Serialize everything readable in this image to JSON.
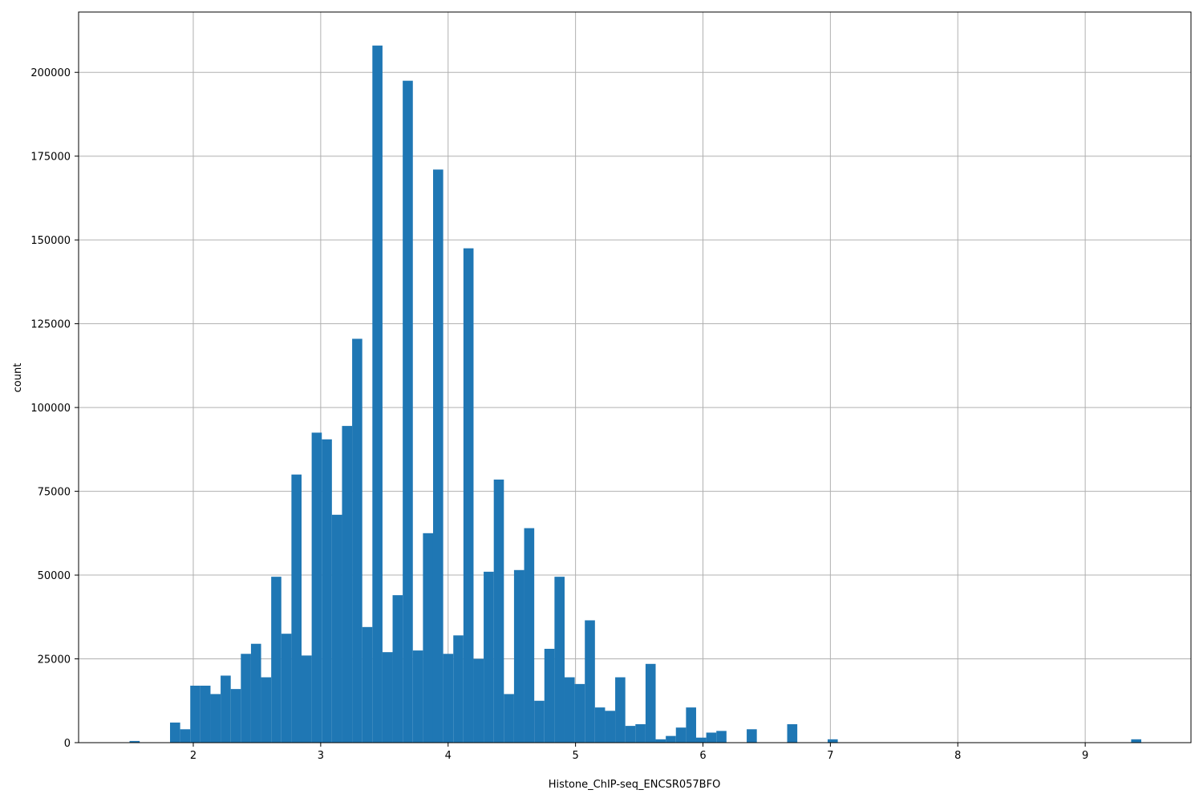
{
  "chart_data": {
    "type": "bar",
    "title": "",
    "xlabel": "Histone_ChIP-seq_ENCSR057BFO",
    "ylabel": "count",
    "xlim": [
      1.1,
      9.83
    ],
    "ylim": [
      0,
      218000
    ],
    "grid": true,
    "bar_color": "#1f77b4",
    "grid_color": "#b0b0b0",
    "bin_start": 1.5,
    "bin_width": 0.0794,
    "values": [
      500,
      0,
      0,
      0,
      6000,
      4000,
      17000,
      17000,
      14500,
      20000,
      16000,
      26500,
      29500,
      19500,
      49500,
      32500,
      80000,
      26000,
      92500,
      90500,
      68000,
      94500,
      120500,
      34500,
      208000,
      27000,
      44000,
      197500,
      27500,
      62500,
      171000,
      26500,
      32000,
      147500,
      25000,
      51000,
      78500,
      14500,
      51500,
      64000,
      12500,
      28000,
      49500,
      19500,
      17500,
      36500,
      10500,
      9500,
      19500,
      5000,
      5500,
      23500,
      1000,
      2000,
      4500,
      10500,
      1500,
      3000,
      3500,
      0,
      0,
      4000,
      0,
      0,
      0,
      5500,
      0,
      0,
      0,
      1000,
      0,
      0,
      0,
      0,
      0,
      0,
      0,
      0,
      0,
      0,
      0,
      0,
      0,
      0,
      0,
      0,
      0,
      0,
      0,
      0,
      0,
      0,
      0,
      0,
      0,
      0,
      0,
      0,
      0,
      1000
    ],
    "xticks": [
      "2",
      "3",
      "4",
      "5",
      "6",
      "7",
      "8",
      "9"
    ],
    "yticks": [
      "0",
      "25000",
      "50000",
      "75000",
      "100000",
      "125000",
      "150000",
      "175000",
      "200000"
    ]
  }
}
